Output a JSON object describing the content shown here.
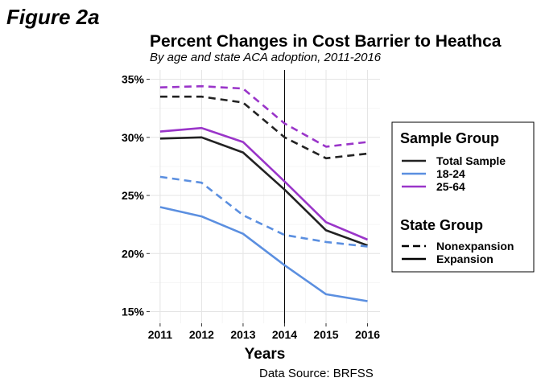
{
  "figure_label": "Figure 2a",
  "chart_data": {
    "type": "line",
    "title": "Percent Changes in Cost Barrier to Heathca",
    "subtitle": "By age and state ACA adoption, 2011-2016",
    "xlabel": "Years",
    "ylabel": "",
    "source": "Data Source: BRFSS",
    "x": [
      2011,
      2012,
      2013,
      2014,
      2015,
      2016
    ],
    "xticks": [
      "2011",
      "2012",
      "2013",
      "2014",
      "2015",
      "2016"
    ],
    "yticks": [
      15,
      20,
      25,
      30,
      35
    ],
    "ytick_labels": [
      "15%",
      "20%",
      "25%",
      "30%",
      "35%"
    ],
    "xlim": [
      2010.75,
      2016.3
    ],
    "ylim": [
      14.0,
      35.8
    ],
    "grid": true,
    "vline_x": 2014,
    "legend_position": "right",
    "legend": {
      "sample_title": "Sample Group",
      "sample_items": [
        {
          "label": "Total Sample",
          "color": "#222222"
        },
        {
          "label": "18-24",
          "color": "#5b8fe0"
        },
        {
          "label": "25-64",
          "color": "#9a35c9"
        }
      ],
      "state_title": "State Group",
      "state_items": [
        {
          "label": "Nonexpansion",
          "dash": "dashed"
        },
        {
          "label": "Expansion",
          "dash": "solid"
        }
      ]
    },
    "series": [
      {
        "group": "Total Sample",
        "state": "Nonexpansion",
        "color": "#222222",
        "dash": "dashed",
        "values": [
          33.5,
          33.5,
          33.0,
          30.0,
          28.2,
          28.6
        ]
      },
      {
        "group": "Total Sample",
        "state": "Expansion",
        "color": "#222222",
        "dash": "solid",
        "values": [
          29.9,
          30.0,
          28.7,
          25.5,
          22.0,
          20.7
        ]
      },
      {
        "group": "18-24",
        "state": "Nonexpansion",
        "color": "#5b8fe0",
        "dash": "dashed",
        "values": [
          26.6,
          26.1,
          23.3,
          21.6,
          21.0,
          20.6
        ]
      },
      {
        "group": "18-24",
        "state": "Expansion",
        "color": "#5b8fe0",
        "dash": "solid",
        "values": [
          24.0,
          23.2,
          21.7,
          19.0,
          16.5,
          15.9
        ]
      },
      {
        "group": "25-64",
        "state": "Nonexpansion",
        "color": "#9a35c9",
        "dash": "dashed",
        "values": [
          34.3,
          34.4,
          34.2,
          31.2,
          29.2,
          29.6
        ]
      },
      {
        "group": "25-64",
        "state": "Expansion",
        "color": "#9a35c9",
        "dash": "solid",
        "values": [
          30.5,
          30.8,
          29.6,
          26.2,
          22.7,
          21.2
        ]
      }
    ]
  }
}
